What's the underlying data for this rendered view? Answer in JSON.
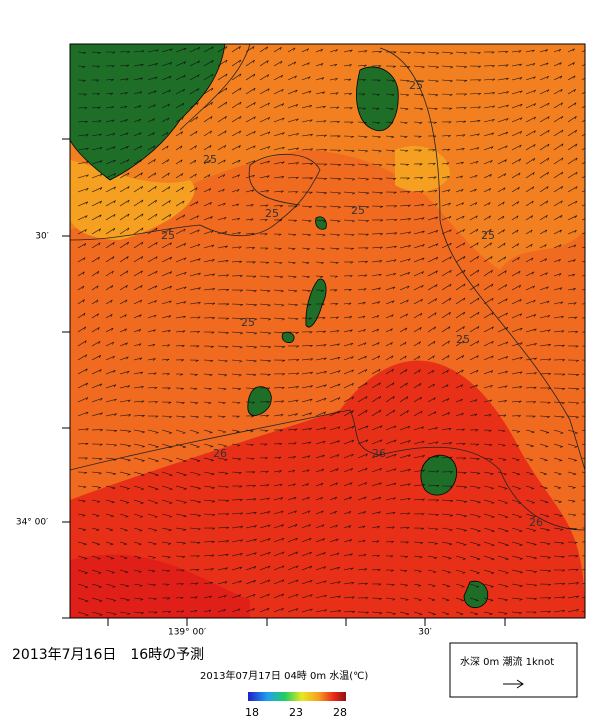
{
  "map": {
    "lat_labels": [
      "30′",
      "34° 00′"
    ],
    "lon_labels": [
      "139° 00′",
      "30′"
    ],
    "contour_labels": [
      "25",
      "25",
      "25",
      "25",
      "25",
      "25",
      "25",
      "25",
      "26",
      "26",
      "26"
    ]
  },
  "caption": {
    "title": "2013年7月16日　16時の予測",
    "subtitle": "2013年07月17日 04時 0m 水温(℃)"
  },
  "colorbar": {
    "ticks": [
      18,
      23,
      28
    ]
  },
  "legend": {
    "text": "水深 0m 潮流 1knot"
  }
}
